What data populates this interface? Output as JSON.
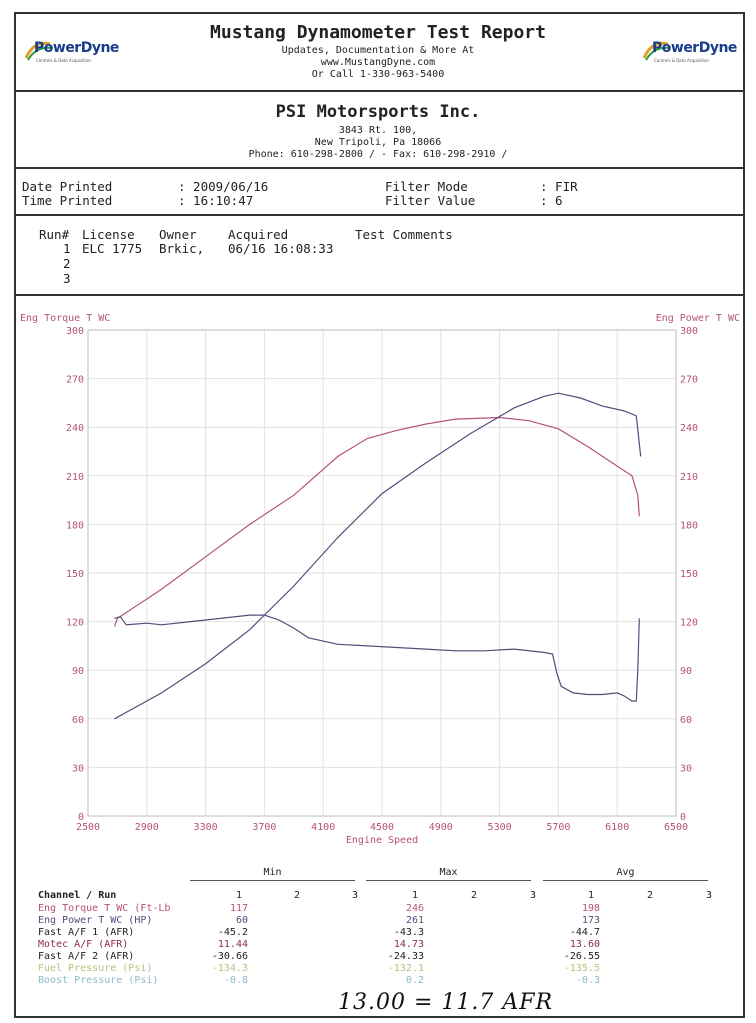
{
  "header": {
    "title": "Mustang Dynamometer Test Report",
    "line1": "Updates, Documentation & More At",
    "line2": "www.MustangDyne.com",
    "line3": "Or Call 1-330-963-5400",
    "logo_left": "PowerDyne",
    "logo_right": "PowerDyne"
  },
  "company": {
    "name": "PSI Motorsports Inc.",
    "address1": "3843 Rt. 100,",
    "address2": "New Tripoli, Pa  18066",
    "phone": "Phone: 610-298-2800 /  - Fax: 610-298-2910 /"
  },
  "info": {
    "date_label": "Date Printed",
    "date_value": ": 2009/06/16",
    "time_label": "Time Printed",
    "time_value": ": 16:10:47",
    "filter_mode_label": "Filter Mode",
    "filter_mode_value": ": FIR",
    "filter_value_label": "Filter Value",
    "filter_value_value": ": 6"
  },
  "runs": {
    "headers": [
      "Run#",
      "License",
      "Owner",
      "Acquired",
      "Test Comments"
    ],
    "rows": [
      {
        "run": "1",
        "license": "ELC 1775",
        "owner": "Brkic,",
        "acquired": "06/16 16:08:33"
      },
      {
        "run": "2"
      },
      {
        "run": "3"
      }
    ]
  },
  "chart_data": {
    "type": "line",
    "xlabel": "Engine Speed",
    "ylabel_left": "Eng Torque T WC",
    "ylabel_right": "Eng Power T WC",
    "xlim": [
      2500,
      6500
    ],
    "ylim": [
      0,
      300
    ],
    "x_ticks": [
      "2500",
      "2900",
      "3300",
      "3700",
      "4100",
      "4500",
      "4900",
      "5300",
      "5700",
      "6100",
      "6500"
    ],
    "y_ticks": [
      "0",
      "30",
      "60",
      "90",
      "120",
      "150",
      "180",
      "210",
      "240",
      "270",
      "300"
    ],
    "colors": {
      "torque": "#b5527a",
      "power": "#5a4a7a",
      "afr": "#5a4a7a",
      "axis": "#b5527a"
    },
    "series": [
      {
        "name": "Eng Torque T WC",
        "points": [
          [
            2680,
            117
          ],
          [
            2700,
            122
          ],
          [
            3000,
            140
          ],
          [
            3300,
            160
          ],
          [
            3600,
            180
          ],
          [
            3900,
            198
          ],
          [
            4200,
            222
          ],
          [
            4400,
            233
          ],
          [
            4600,
            238
          ],
          [
            4800,
            242
          ],
          [
            5000,
            245
          ],
          [
            5300,
            246
          ],
          [
            5500,
            244
          ],
          [
            5700,
            239
          ],
          [
            5900,
            228
          ],
          [
            6100,
            216
          ],
          [
            6200,
            210
          ],
          [
            6240,
            198
          ],
          [
            6250,
            185
          ]
        ]
      },
      {
        "name": "Eng Power T WC",
        "points": [
          [
            2680,
            60
          ],
          [
            3000,
            76
          ],
          [
            3300,
            94
          ],
          [
            3600,
            115
          ],
          [
            3900,
            142
          ],
          [
            4200,
            172
          ],
          [
            4500,
            199
          ],
          [
            4800,
            218
          ],
          [
            5100,
            236
          ],
          [
            5400,
            252
          ],
          [
            5600,
            259
          ],
          [
            5700,
            261
          ],
          [
            5850,
            258
          ],
          [
            6000,
            253
          ],
          [
            6150,
            250
          ],
          [
            6230,
            247
          ],
          [
            6260,
            222
          ]
        ]
      },
      {
        "name": "Motec A/F",
        "points": [
          [
            2680,
            122
          ],
          [
            2720,
            123
          ],
          [
            2760,
            118
          ],
          [
            2900,
            119
          ],
          [
            3000,
            118
          ],
          [
            3200,
            120
          ],
          [
            3400,
            122
          ],
          [
            3600,
            124
          ],
          [
            3700,
            124
          ],
          [
            3800,
            121
          ],
          [
            3900,
            116
          ],
          [
            4000,
            110
          ],
          [
            4200,
            106
          ],
          [
            4400,
            105
          ],
          [
            4600,
            104
          ],
          [
            4800,
            103
          ],
          [
            5000,
            102
          ],
          [
            5200,
            102
          ],
          [
            5400,
            103
          ],
          [
            5600,
            101
          ],
          [
            5660,
            100
          ],
          [
            5690,
            88
          ],
          [
            5720,
            80
          ],
          [
            5800,
            76
          ],
          [
            5900,
            75
          ],
          [
            6000,
            75
          ],
          [
            6100,
            76
          ],
          [
            6150,
            74
          ],
          [
            6200,
            71
          ],
          [
            6230,
            71
          ],
          [
            6240,
            90
          ],
          [
            6250,
            122
          ]
        ]
      }
    ]
  },
  "stats": {
    "group_labels": [
      "Min",
      "Max",
      "Avg"
    ],
    "channel_header": "Channel / Run",
    "run_numbers": [
      "1",
      "2",
      "3"
    ],
    "rows": [
      {
        "name": "Eng Torque T WC (Ft-Lb",
        "color": "#b5527a",
        "min": "117",
        "max": "246",
        "avg": "198"
      },
      {
        "name": "Eng Power T WC (HP)",
        "color": "#5a4a7a",
        "min": "60",
        "max": "261",
        "avg": "173"
      },
      {
        "name": "Fast A/F 1 (AFR)",
        "color": "#222222",
        "min": "-45.2",
        "max": "-43.3",
        "avg": "-44.7"
      },
      {
        "name": "Motec A/F (AFR)",
        "color": "#8a2a55",
        "min": "11.44",
        "max": "14.73",
        "avg": "13.60"
      },
      {
        "name": "Fast A/F 2 (AFR)",
        "color": "#222222",
        "min": "-30.66",
        "max": "-24.33",
        "avg": "-26.55"
      },
      {
        "name": "Fuel Pressure (Psi)",
        "color": "#b8c27a",
        "min": "-134.3",
        "max": "-132.1",
        "avg": "-135.5"
      },
      {
        "name": "Boost Pressure (Psi)",
        "color": "#8fb8c8",
        "min": "-0.8",
        "max": "0.2",
        "avg": "-0.3"
      }
    ]
  },
  "handwritten_note": "13.00 = 11.7 AFR"
}
